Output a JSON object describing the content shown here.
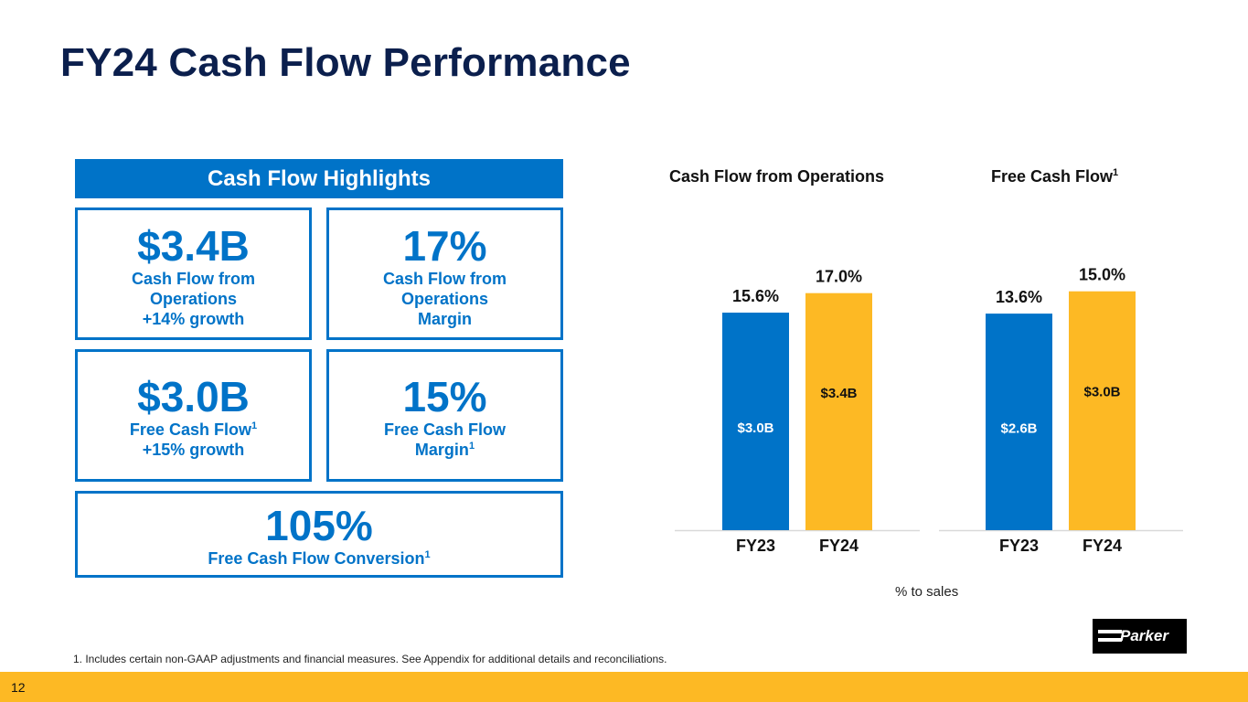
{
  "slide": {
    "title": "FY24 Cash Flow Performance",
    "page_number": "12",
    "footnote": "1. Includes certain non-GAAP adjustments and financial measures. See Appendix for additional details and reconciliations.",
    "pct_note": "% to sales",
    "logo_text": "Parker"
  },
  "highlights": {
    "header": "Cash Flow Highlights",
    "boxes": [
      {
        "big": "$3.4B",
        "line1": "Cash Flow from",
        "line2": "Operations",
        "line3": "+14% growth"
      },
      {
        "big": "17%",
        "line1": "Cash Flow from",
        "line2": "Operations",
        "line3": "Margin"
      },
      {
        "big": "$3.0B",
        "line1": "Free Cash Flow",
        "sup1": "1",
        "line2": "+15% growth"
      },
      {
        "big": "15%",
        "line1": "Free Cash Flow",
        "line2": "Margin",
        "sup2": "1"
      },
      {
        "big": "105%",
        "line1": "Free Cash Flow Conversion",
        "sup1": "1"
      }
    ]
  },
  "colors": {
    "blue": "#0073c8",
    "gold": "#fdb924",
    "navy": "#0b1f4d"
  },
  "chart_data": [
    {
      "type": "bar",
      "title": "Cash Flow from Operations",
      "categories": [
        "FY23",
        "FY24"
      ],
      "values": [
        3.0,
        3.4
      ],
      "value_labels": [
        "$3.0B",
        "$3.4B"
      ],
      "pct_labels": [
        "15.6%",
        "17.0%"
      ],
      "pct_values": [
        15.6,
        17.0
      ],
      "ylabel": "% to sales",
      "ylim": [
        0,
        17.7
      ]
    },
    {
      "type": "bar",
      "title": "Free Cash Flow",
      "title_sup": "1",
      "categories": [
        "FY23",
        "FY24"
      ],
      "values": [
        2.6,
        3.0
      ],
      "value_labels": [
        "$2.6B",
        "$3.0B"
      ],
      "pct_labels": [
        "13.6%",
        "15.0%"
      ],
      "pct_values": [
        13.6,
        15.0
      ],
      "ylabel": "% to sales",
      "ylim": [
        0,
        15.5
      ]
    }
  ]
}
